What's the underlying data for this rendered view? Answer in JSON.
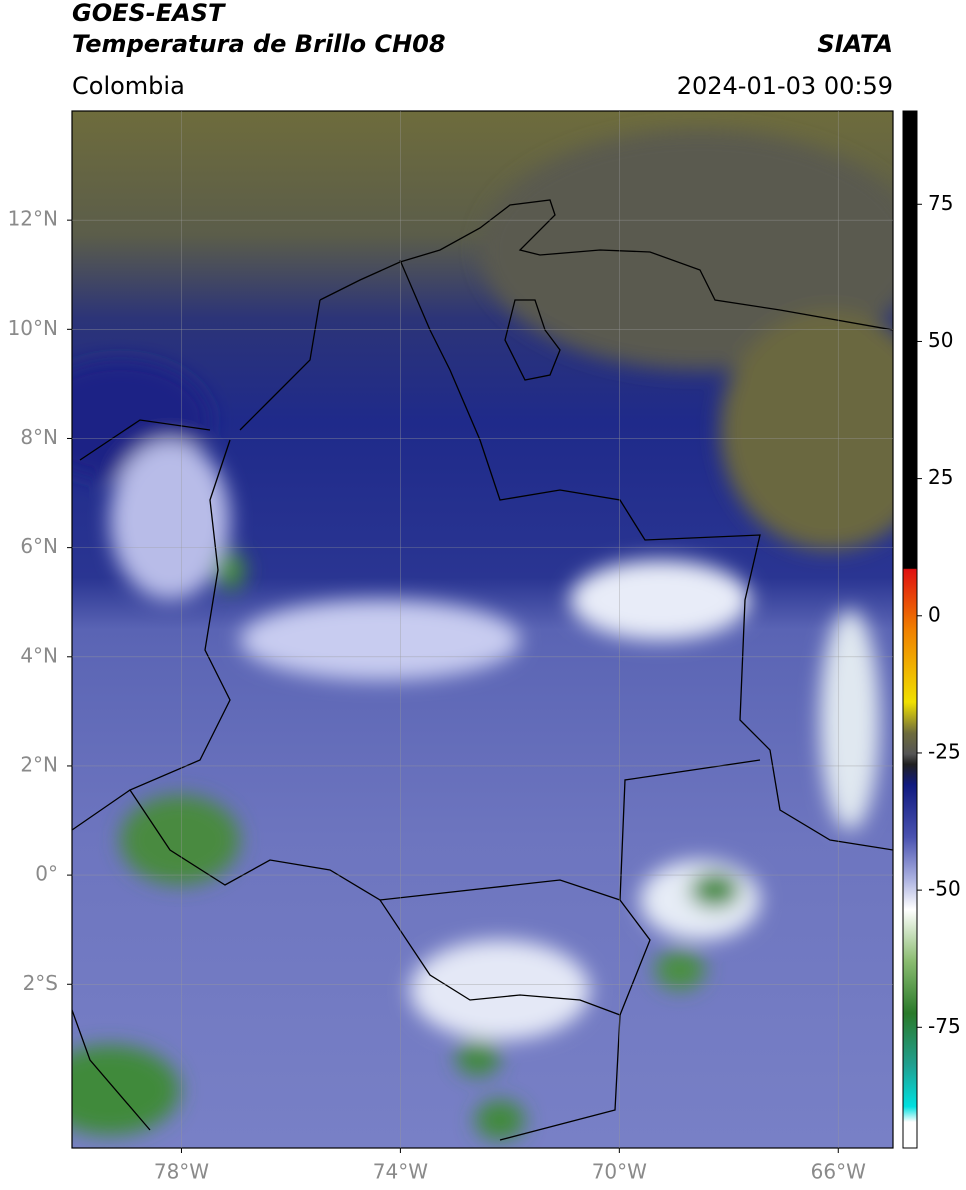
{
  "header": {
    "title": "GOES-EAST",
    "subtitle": "Temperatura de Brillo CH08",
    "source": "SIATA",
    "region": "Colombia",
    "datetime": "2024-01-03 00:59"
  },
  "map": {
    "xlim": [
      -80,
      -65
    ],
    "ylim": [
      -5,
      14
    ],
    "grid": true,
    "xticks": [
      {
        "value": -78,
        "label": "78°W"
      },
      {
        "value": -74,
        "label": "74°W"
      },
      {
        "value": -70,
        "label": "70°W"
      },
      {
        "value": -66,
        "label": "66°W"
      }
    ],
    "yticks": [
      {
        "value": 12,
        "label": "12°N"
      },
      {
        "value": 10,
        "label": "10°N"
      },
      {
        "value": 8,
        "label": "8°N"
      },
      {
        "value": 6,
        "label": "6°N"
      },
      {
        "value": 4,
        "label": "4°N"
      },
      {
        "value": 2,
        "label": "2°N"
      },
      {
        "value": 0,
        "label": "0°"
      },
      {
        "value": -2,
        "label": "2°S"
      }
    ]
  },
  "colorbar": {
    "lim": [
      -97,
      92
    ],
    "ticks": [
      75,
      50,
      25,
      0,
      -25,
      -50,
      -75
    ]
  }
}
